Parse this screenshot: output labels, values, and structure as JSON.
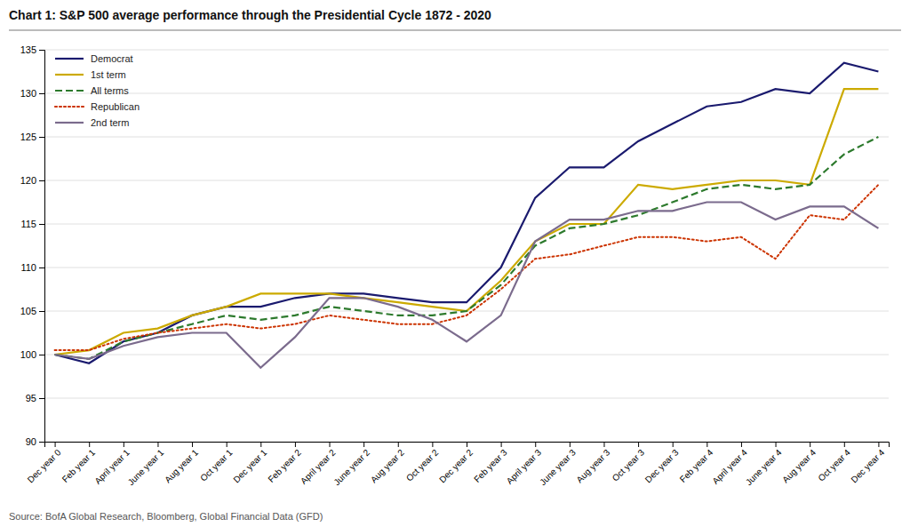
{
  "chart_data": {
    "type": "line",
    "title": "Chart 1: S&P 500 average performance through the Presidential Cycle 1872 - 2020",
    "annotations": [
      "Source: BofA Global Research, Bloomberg, Global Financial Data (GFD)"
    ],
    "categories": [
      "Dec year 0",
      "Feb year 1",
      "April year 1",
      "June year 1",
      "Aug year 1",
      "Oct year 1",
      "Dec year 1",
      "Feb year 2",
      "April year 2",
      "June year 2",
      "Aug year 2",
      "Oct year 2",
      "Dec year 2",
      "Feb year 3",
      "April year 3",
      "June year 3",
      "Aug year 3",
      "Oct year 3",
      "Dec year 3",
      "Feb year 4",
      "April year 4",
      "June year 4",
      "Aug year 4",
      "Oct year 4",
      "Dec year 4"
    ],
    "series": [
      {
        "name": "Democrat",
        "color": "#1a1a6e",
        "line_style": "solid",
        "values": [
          100.0,
          99.0,
          101.5,
          102.5,
          104.5,
          105.5,
          105.5,
          106.5,
          107.0,
          107.0,
          106.5,
          106.0,
          106.0,
          110.0,
          118.0,
          121.5,
          121.5,
          124.5,
          126.5,
          128.5,
          129.0,
          130.5,
          130.0,
          133.5,
          132.5
        ]
      },
      {
        "name": "1st term",
        "color": "#ccaa00",
        "line_style": "solid",
        "values": [
          100.0,
          100.5,
          102.5,
          103.0,
          104.5,
          105.5,
          107.0,
          107.0,
          107.0,
          106.5,
          106.0,
          105.5,
          105.0,
          108.5,
          113.0,
          115.0,
          115.0,
          119.5,
          119.0,
          119.5,
          120.0,
          120.0,
          119.5,
          130.5,
          130.5
        ]
      },
      {
        "name": "All terms",
        "color": "#2d7a2d",
        "line_style": "dashed",
        "values": [
          100.0,
          99.5,
          101.5,
          102.5,
          103.5,
          104.5,
          104.0,
          104.5,
          105.5,
          105.0,
          104.5,
          104.5,
          105.0,
          108.0,
          112.5,
          114.5,
          115.0,
          116.0,
          117.5,
          119.0,
          119.5,
          119.0,
          119.5,
          123.0,
          125.0
        ]
      },
      {
        "name": "Republican",
        "color": "#cc3300",
        "line_style": "dotted",
        "values": [
          100.5,
          100.5,
          101.8,
          102.5,
          103.0,
          103.5,
          103.0,
          103.5,
          104.5,
          104.0,
          103.5,
          103.5,
          104.5,
          107.5,
          111.0,
          111.5,
          112.5,
          113.5,
          113.5,
          113.0,
          113.5,
          111.0,
          116.0,
          115.5,
          119.5
        ]
      },
      {
        "name": "2nd term",
        "color": "#7b6b8d",
        "line_style": "solid",
        "values": [
          100.0,
          99.5,
          101.0,
          102.0,
          102.5,
          102.5,
          98.5,
          102.0,
          106.5,
          106.5,
          105.5,
          104.0,
          101.5,
          104.5,
          113.0,
          115.5,
          115.5,
          116.5,
          116.5,
          117.5,
          117.5,
          115.5,
          117.0,
          117.0,
          114.5
        ]
      }
    ],
    "ylim": [
      90,
      135
    ],
    "yticks": [
      90,
      95,
      100,
      105,
      110,
      115,
      120,
      125,
      130,
      135
    ],
    "grid": true,
    "legend": "upper left"
  }
}
